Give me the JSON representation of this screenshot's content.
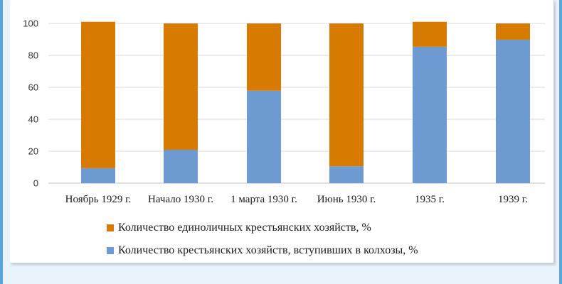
{
  "chart_data": {
    "type": "bar",
    "stacked": true,
    "categories": [
      "Ноябрь 1929 г.",
      "Начало 1930 г.",
      "1 марта 1930 г.",
      "Июнь 1930 г.",
      "1935 г.",
      "1939 г."
    ],
    "series": [
      {
        "name": "Количество крестьянских хозяйств, вступивших в колхозы, %",
        "color": "#6e9ad2",
        "values": [
          9.4,
          20.9,
          57.9,
          10.6,
          85.4,
          89.8
        ]
      },
      {
        "name": "Количество единоличных крестьянских хозяйств, %",
        "color": "#d67a00",
        "values": [
          91.6,
          79.1,
          42.1,
          89.4,
          15.6,
          10.2
        ]
      }
    ],
    "yticks": [
      "0",
      "20",
      "40",
      "60",
      "80",
      "100"
    ],
    "ylim": [
      0,
      100
    ],
    "grid": true,
    "legend_position": "bottom"
  },
  "legend": [
    {
      "label": "Количество единоличных крестьянских хозяйств, %",
      "color": "#d67a00"
    },
    {
      "label": "Количество крестьянских хозяйств, вступивших в колхозы, %",
      "color": "#6e9ad2"
    }
  ]
}
